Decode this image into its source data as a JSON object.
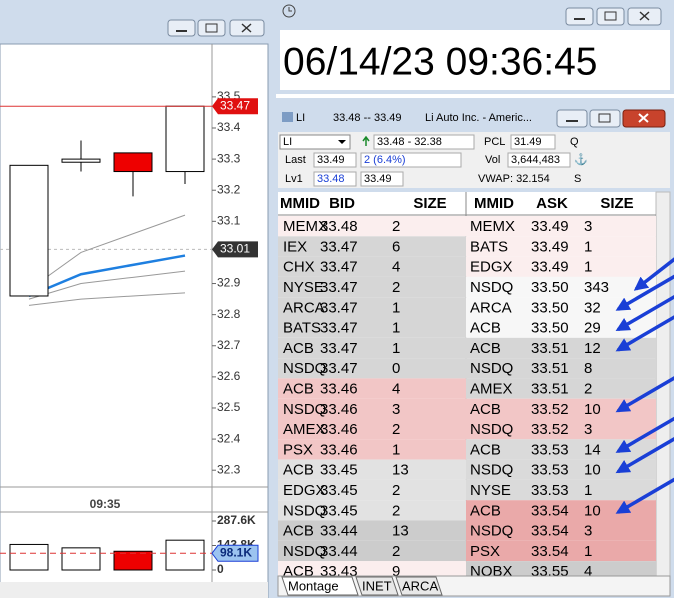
{
  "price_chart": {
    "ylim": [
      32.246,
      33.67
    ],
    "yticks": [
      33.5,
      33.4,
      33.3,
      33.2,
      33.1,
      32.9,
      32.8,
      32.7,
      32.6,
      32.5,
      32.4,
      32.3
    ],
    "last_price": 33.47,
    "average_price": 33.01,
    "time_label": "09:35",
    "candles": [
      {
        "open": 32.86,
        "high": 33.28,
        "low": 32.86,
        "close": 33.28
      },
      {
        "open": 33.29,
        "high": 33.36,
        "low": 33.26,
        "close": 33.3
      },
      {
        "open": 33.32,
        "high": 33.32,
        "low": 33.18,
        "close": 33.26
      },
      {
        "open": 33.26,
        "high": 33.47,
        "low": 33.22,
        "close": 33.47
      }
    ],
    "lines": [
      {
        "color": "#999999",
        "values": [
          32.88,
          33.0,
          33.06,
          33.12
        ]
      },
      {
        "color": "#999999",
        "values": [
          32.85,
          32.9,
          32.92,
          32.94
        ]
      },
      {
        "color": "#999999",
        "values": [
          32.83,
          32.85,
          32.86,
          32.87
        ]
      },
      {
        "color": "#1e7fe0",
        "values": [
          32.86,
          32.93,
          32.96,
          32.99
        ]
      }
    ],
    "volume": {
      "ylim": [
        0,
        381500
      ],
      "yticks": [
        {
          "value": 287600,
          "label": "287.6K"
        },
        {
          "value": 143800,
          "label": "143.8K"
        },
        0
      ],
      "values": [
        150000,
        130000,
        110000,
        175000
      ],
      "marker": {
        "value": 98100,
        "label": "98.1K"
      }
    }
  },
  "clock": {
    "datetime": "06/14/23 09:36:45"
  },
  "level2": {
    "title_symbol": "LI",
    "title_quote": "33.48 -- 33.49",
    "title_name": "Li Auto Inc. - Americ...",
    "symbol": "LI",
    "range": "33.48 - 32.38",
    "pcl_label": "PCL",
    "pcl": "31.49",
    "q": "Q",
    "last_label": "Last",
    "last": "33.49",
    "change": "2  (6.4%)",
    "vol_label": "Vol",
    "vol": "3,644,483",
    "lv1_label": "Lv1",
    "lv1_bid": "33.48",
    "lv1_ask": "33.49",
    "vwap": "VWAP: 32.154",
    "s": "S",
    "columns": [
      "MMID",
      "BID",
      "SIZE",
      "MMID",
      "ASK",
      "SIZE"
    ],
    "rows": [
      [
        "MEMX",
        "33.48",
        2,
        "MEMX",
        "33.49",
        3
      ],
      [
        "IEX",
        "33.47",
        6,
        "BATS",
        "33.49",
        1
      ],
      [
        "CHX",
        "33.47",
        4,
        "EDGX",
        "33.49",
        1
      ],
      [
        "NYSE",
        "33.47",
        2,
        "NSDQ",
        "33.50",
        343
      ],
      [
        "ARCA",
        "33.47",
        1,
        "ARCA",
        "33.50",
        32
      ],
      [
        "BATS",
        "33.47",
        1,
        "ACB",
        "33.50",
        29
      ],
      [
        "ACB",
        "33.47",
        1,
        "ACB",
        "33.51",
        12
      ],
      [
        "NSDQ",
        "33.47",
        0,
        "NSDQ",
        "33.51",
        8
      ],
      [
        "ACB",
        "33.46",
        4,
        "AMEX",
        "33.51",
        2
      ],
      [
        "NSDQ",
        "33.46",
        3,
        "ACB",
        "33.52",
        10
      ],
      [
        "AMEX",
        "33.46",
        2,
        "NSDQ",
        "33.52",
        3
      ],
      [
        "PSX",
        "33.46",
        1,
        "ACB",
        "33.53",
        14
      ],
      [
        "ACB",
        "33.45",
        13,
        "NSDQ",
        "33.53",
        10
      ],
      [
        "EDGX",
        "33.45",
        2,
        "NYSE",
        "33.53",
        1
      ],
      [
        "NSDQ",
        "33.45",
        2,
        "ACB",
        "33.54",
        10
      ],
      [
        "ACB",
        "33.44",
        13,
        "NSDQ",
        "33.54",
        3
      ],
      [
        "NSDQ",
        "33.44",
        2,
        "PSX",
        "33.54",
        1
      ],
      [
        "ACB",
        "33.43",
        9,
        "NQBX",
        "33.55",
        4
      ]
    ],
    "tabs": [
      "Montage",
      "INET",
      "ARCA"
    ]
  }
}
